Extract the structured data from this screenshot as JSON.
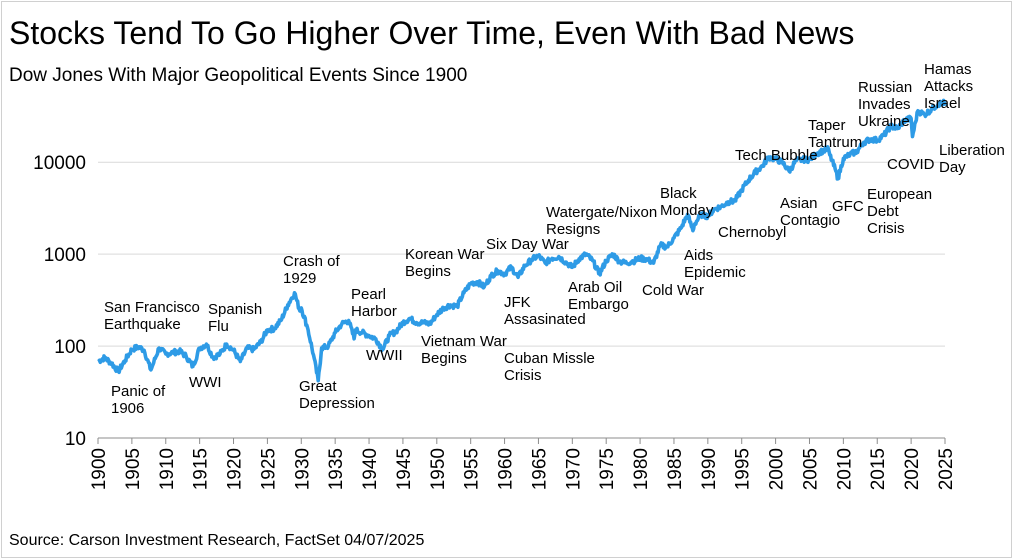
{
  "chart_data": {
    "type": "line",
    "title": "Stocks Tend To Go Higher Over Time, Even With Bad News",
    "subtitle": "Dow Jones With Major Geopolitical Events Since 1900",
    "source": "Source: Carson Investment Research, FactSet 04/07/2025",
    "yscale": "log",
    "ylim": [
      10,
      50000
    ],
    "xlim": [
      1900,
      2025
    ],
    "grid": "horizontal",
    "y_ticks": [
      "10",
      "100",
      "1000",
      "10000"
    ],
    "x_ticks": [
      "1900",
      "1905",
      "1910",
      "1915",
      "1920",
      "1925",
      "1930",
      "1935",
      "1940",
      "1945",
      "1950",
      "1955",
      "1960",
      "1965",
      "1970",
      "1975",
      "1980",
      "1985",
      "1990",
      "1995",
      "2000",
      "2005",
      "2010",
      "2015",
      "2020",
      "2025"
    ],
    "color": "#2e9be6",
    "series": [
      {
        "points": [
          [
            1900,
            68
          ],
          [
            1901,
            75
          ],
          [
            1902,
            65
          ],
          [
            1903,
            53
          ],
          [
            1904,
            70
          ],
          [
            1905,
            92
          ],
          [
            1906,
            98
          ],
          [
            1906.8,
            90
          ],
          [
            1907.8,
            55
          ],
          [
            1908,
            60
          ],
          [
            1909,
            95
          ],
          [
            1910,
            82
          ],
          [
            1911,
            85
          ],
          [
            1912,
            88
          ],
          [
            1913,
            78
          ],
          [
            1914,
            60
          ],
          [
            1915,
            95
          ],
          [
            1916,
            105
          ],
          [
            1917,
            75
          ],
          [
            1918,
            82
          ],
          [
            1919,
            105
          ],
          [
            1920,
            90
          ],
          [
            1921,
            68
          ],
          [
            1922,
            95
          ],
          [
            1923,
            92
          ],
          [
            1924,
            110
          ],
          [
            1925,
            150
          ],
          [
            1926,
            155
          ],
          [
            1927,
            190
          ],
          [
            1928,
            280
          ],
          [
            1929,
            380
          ],
          [
            1929.8,
            240
          ],
          [
            1930,
            260
          ],
          [
            1930.8,
            170
          ],
          [
            1931,
            150
          ],
          [
            1931.8,
            80
          ],
          [
            1932.5,
            42
          ],
          [
            1933,
            95
          ],
          [
            1934,
            100
          ],
          [
            1935,
            140
          ],
          [
            1936,
            175
          ],
          [
            1937,
            190
          ],
          [
            1937.8,
            120
          ],
          [
            1938,
            150
          ],
          [
            1939,
            140
          ],
          [
            1940,
            130
          ],
          [
            1941,
            120
          ],
          [
            1942,
            92
          ],
          [
            1943,
            130
          ],
          [
            1944,
            145
          ],
          [
            1945,
            180
          ],
          [
            1946,
            200
          ],
          [
            1947,
            180
          ],
          [
            1948,
            180
          ],
          [
            1949,
            175
          ],
          [
            1950,
            220
          ],
          [
            1951,
            260
          ],
          [
            1952,
            280
          ],
          [
            1953,
            270
          ],
          [
            1954,
            380
          ],
          [
            1955,
            480
          ],
          [
            1956,
            500
          ],
          [
            1957,
            440
          ],
          [
            1958,
            580
          ],
          [
            1959,
            660
          ],
          [
            1960,
            610
          ],
          [
            1961,
            720
          ],
          [
            1962,
            560
          ],
          [
            1963,
            750
          ],
          [
            1964,
            870
          ],
          [
            1965,
            960
          ],
          [
            1966,
            800
          ],
          [
            1967,
            900
          ],
          [
            1968,
            940
          ],
          [
            1969,
            820
          ],
          [
            1970,
            720
          ],
          [
            1971,
            890
          ],
          [
            1972,
            1000
          ],
          [
            1973,
            850
          ],
          [
            1974,
            610
          ],
          [
            1975,
            850
          ],
          [
            1976,
            1000
          ],
          [
            1977,
            830
          ],
          [
            1978,
            800
          ],
          [
            1979,
            840
          ],
          [
            1980,
            900
          ],
          [
            1981,
            880
          ],
          [
            1982,
            800
          ],
          [
            1983,
            1250
          ],
          [
            1984,
            1200
          ],
          [
            1985,
            1500
          ],
          [
            1986,
            1900
          ],
          [
            1987,
            2700
          ],
          [
            1987.8,
            1800
          ],
          [
            1988,
            2100
          ],
          [
            1989,
            2700
          ],
          [
            1990,
            2600
          ],
          [
            1991,
            3100
          ],
          [
            1992,
            3300
          ],
          [
            1993,
            3700
          ],
          [
            1994,
            3800
          ],
          [
            1995,
            5000
          ],
          [
            1996,
            6400
          ],
          [
            1997,
            7800
          ],
          [
            1998,
            9000
          ],
          [
            1999,
            11400
          ],
          [
            2000,
            10800
          ],
          [
            2001,
            10000
          ],
          [
            2002,
            8000
          ],
          [
            2003,
            10400
          ],
          [
            2004,
            10700
          ],
          [
            2005,
            10700
          ],
          [
            2006,
            12400
          ],
          [
            2007,
            13300
          ],
          [
            2007.8,
            14000
          ],
          [
            2008,
            12000
          ],
          [
            2008.9,
            8000
          ],
          [
            2009.2,
            6600
          ],
          [
            2010,
            11000
          ],
          [
            2011,
            12200
          ],
          [
            2012,
            13100
          ],
          [
            2013,
            16500
          ],
          [
            2014,
            17800
          ],
          [
            2015,
            17400
          ],
          [
            2016,
            19700
          ],
          [
            2017,
            24700
          ],
          [
            2018,
            23300
          ],
          [
            2019,
            28500
          ],
          [
            2020,
            30000
          ],
          [
            2020.2,
            19000
          ],
          [
            2021,
            36300
          ],
          [
            2022,
            33000
          ],
          [
            2023,
            37700
          ],
          [
            2024,
            43000
          ],
          [
            2024.9,
            44500
          ],
          [
            2025,
            41000
          ]
        ]
      }
    ],
    "annotations": [
      {
        "text": "San Francisco\nEarthquake"
      },
      {
        "text": "Panic of\n1906"
      },
      {
        "text": "WWI"
      },
      {
        "text": "Spanish\nFlu"
      },
      {
        "text": "Crash of\n1929"
      },
      {
        "text": "Great\nDepression"
      },
      {
        "text": "Pearl\nHarbor"
      },
      {
        "text": "WWII"
      },
      {
        "text": "Korean War\nBegins"
      },
      {
        "text": "Vietnam War\nBegins"
      },
      {
        "text": "Six Day War"
      },
      {
        "text": "JFK\nAssasinated"
      },
      {
        "text": "Cuban Missle\nCrisis"
      },
      {
        "text": "Watergate/Nixon\nResigns"
      },
      {
        "text": "Arab Oil\nEmbargo"
      },
      {
        "text": "Cold War"
      },
      {
        "text": "Black\nMonday"
      },
      {
        "text": "Aids\nEpidemic"
      },
      {
        "text": "Chernobyl"
      },
      {
        "text": "Tech Bubble"
      },
      {
        "text": "Asian\nContagio"
      },
      {
        "text": "Taper\nTantrum"
      },
      {
        "text": "GFC"
      },
      {
        "text": "Russian\nInvades\nUkraine"
      },
      {
        "text": "European\nDebt\nCrisis"
      },
      {
        "text": "COVID"
      },
      {
        "text": "Hamas\nAttacks\nIsrael"
      },
      {
        "text": "Liberation\nDay"
      }
    ]
  }
}
